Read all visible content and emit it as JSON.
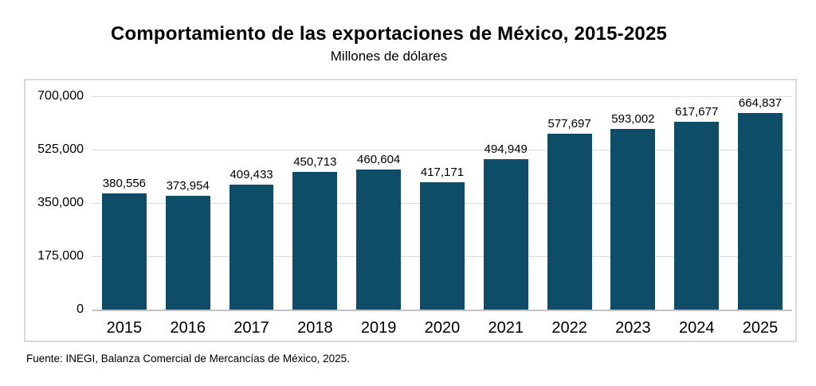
{
  "chart_data": {
    "type": "bar",
    "title": "Comportamiento de las exportaciones de México, 2015-2025",
    "subtitle": "Millones de dólares",
    "source": "Fuente: INEGI, Balanza Comercial de Mercancías de México, 2025.",
    "categories": [
      "2015",
      "2016",
      "2017",
      "2018",
      "2019",
      "2020",
      "2021",
      "2022",
      "2023",
      "2024",
      "2025"
    ],
    "values": [
      380556,
      373954,
      409433,
      450713,
      460604,
      417171,
      494949,
      577697,
      593002,
      617677,
      664837
    ],
    "value_labels": [
      "380,556",
      "373,954",
      "409,433",
      "450,713",
      "460,604",
      "417,171",
      "494,949",
      "577,697",
      "593,002",
      "617,677",
      "664,837"
    ],
    "xlabel": "",
    "ylabel": "",
    "ylim": [
      0,
      700000
    ],
    "yticks": [
      0,
      175000,
      350000,
      525000,
      700000
    ],
    "ytick_labels": [
      "0",
      "175,000",
      "350,000",
      "525,000",
      "700,000"
    ],
    "grid": true,
    "legend": false,
    "colors": {
      "bar": "#0d4d68",
      "gridline": "#d9d9d9",
      "axis_line": "#c3c3c3",
      "frame_border": "#d9d9d9",
      "text": "#000000",
      "background": "#ffffff"
    }
  }
}
